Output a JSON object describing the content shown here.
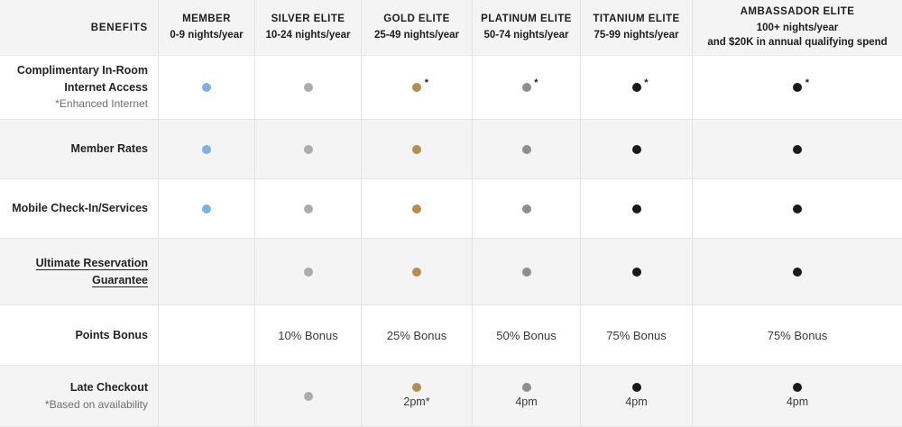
{
  "colors": {
    "member": "#7db1e4",
    "silver": "#acacac",
    "gold": "#b58e4f",
    "platinum": "#8e8e8e",
    "elite": "#1a1a1a"
  },
  "marks": {
    "asterisk": "*"
  },
  "header": {
    "benefits_label": "BENEFITS",
    "tiers": [
      {
        "id": "member",
        "title": "MEMBER",
        "subtitle_lines": [
          "0-9 nights/year"
        ]
      },
      {
        "id": "silver",
        "title": "SILVER ELITE",
        "subtitle_lines": [
          "10-24 nights/year"
        ]
      },
      {
        "id": "gold",
        "title": "GOLD ELITE",
        "subtitle_lines": [
          "25-49 nights/year"
        ]
      },
      {
        "id": "platinum",
        "title": "PLATINUM ELITE",
        "subtitle_lines": [
          "50-74 nights/year"
        ]
      },
      {
        "id": "titanium",
        "title": "TITANIUM ELITE",
        "subtitle_lines": [
          "75-99 nights/year"
        ]
      },
      {
        "id": "ambassador",
        "title": "AMBASSADOR ELITE",
        "subtitle_lines": [
          "100+ nights/year",
          "and $20K in annual qualifying spend"
        ]
      }
    ]
  },
  "rows": [
    {
      "id": "internet-access",
      "label_lines": [
        "Complimentary In-Room",
        "Internet Access"
      ],
      "note": "*Enhanced Internet",
      "cells": [
        {
          "dot": "member"
        },
        {
          "dot": "silver"
        },
        {
          "dot": "gold",
          "asterisk": true
        },
        {
          "dot": "platinum",
          "asterisk": true
        },
        {
          "dot": "elite",
          "asterisk": true
        },
        {
          "dot": "elite",
          "asterisk": true
        }
      ]
    },
    {
      "id": "member-rates",
      "label_lines": [
        "Member Rates"
      ],
      "cells": [
        {
          "dot": "member"
        },
        {
          "dot": "silver"
        },
        {
          "dot": "gold"
        },
        {
          "dot": "platinum"
        },
        {
          "dot": "elite"
        },
        {
          "dot": "elite"
        }
      ]
    },
    {
      "id": "mobile-check-in",
      "label_lines": [
        "Mobile Check-In/Services"
      ],
      "cells": [
        {
          "dot": "member"
        },
        {
          "dot": "silver"
        },
        {
          "dot": "gold"
        },
        {
          "dot": "platinum"
        },
        {
          "dot": "elite"
        },
        {
          "dot": "elite"
        }
      ]
    },
    {
      "id": "ultimate-reservation-guarantee",
      "underlined": true,
      "label_lines": [
        "Ultimate Reservation",
        "Guarantee"
      ],
      "cells": [
        {},
        {
          "dot": "silver"
        },
        {
          "dot": "gold"
        },
        {
          "dot": "platinum"
        },
        {
          "dot": "elite"
        },
        {
          "dot": "elite"
        }
      ]
    },
    {
      "id": "points-bonus",
      "label_lines": [
        "Points Bonus"
      ],
      "cells": [
        {},
        {
          "text": "10% Bonus"
        },
        {
          "text": "25% Bonus"
        },
        {
          "text": "50% Bonus"
        },
        {
          "text": "75% Bonus"
        },
        {
          "text": "75% Bonus"
        }
      ]
    },
    {
      "id": "late-checkout",
      "label_lines": [
        "Late Checkout"
      ],
      "note": "*Based on availability",
      "cells": [
        {},
        {
          "dot": "silver"
        },
        {
          "dot": "gold",
          "text": "2pm*"
        },
        {
          "dot": "platinum",
          "text": "4pm"
        },
        {
          "dot": "elite",
          "text": "4pm"
        },
        {
          "dot": "elite",
          "text": "4pm"
        }
      ]
    }
  ]
}
